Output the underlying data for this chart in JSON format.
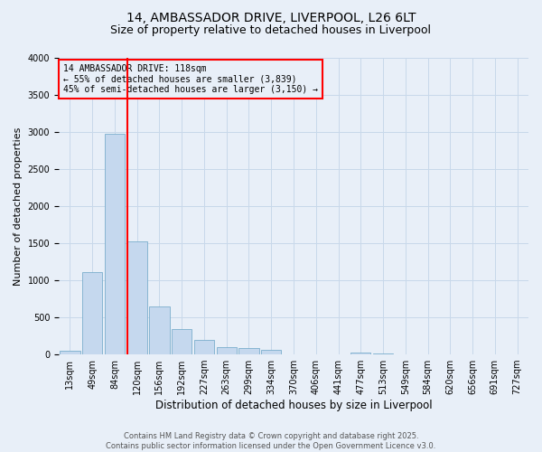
{
  "title_line1": "14, AMBASSADOR DRIVE, LIVERPOOL, L26 6LT",
  "title_line2": "Size of property relative to detached houses in Liverpool",
  "xlabel": "Distribution of detached houses by size in Liverpool",
  "ylabel": "Number of detached properties",
  "footer_line1": "Contains HM Land Registry data © Crown copyright and database right 2025.",
  "footer_line2": "Contains public sector information licensed under the Open Government Licence v3.0.",
  "annotation_line1": "14 AMBASSADOR DRIVE: 118sqm",
  "annotation_line2": "← 55% of detached houses are smaller (3,839)",
  "annotation_line3": "45% of semi-detached houses are larger (3,150) →",
  "bar_categories": [
    "13sqm",
    "49sqm",
    "84sqm",
    "120sqm",
    "156sqm",
    "192sqm",
    "227sqm",
    "263sqm",
    "299sqm",
    "334sqm",
    "370sqm",
    "406sqm",
    "441sqm",
    "477sqm",
    "513sqm",
    "549sqm",
    "584sqm",
    "620sqm",
    "656sqm",
    "691sqm",
    "727sqm"
  ],
  "bar_values": [
    55,
    1110,
    2970,
    1530,
    650,
    340,
    200,
    95,
    90,
    65,
    0,
    0,
    0,
    30,
    10,
    0,
    0,
    0,
    0,
    0,
    0
  ],
  "bar_color": "#c5d8ee",
  "bar_edge_color": "#7aaecc",
  "vline_color": "red",
  "vline_x_pos": 2.575,
  "ylim": [
    0,
    4000
  ],
  "yticks": [
    0,
    500,
    1000,
    1500,
    2000,
    2500,
    3000,
    3500,
    4000
  ],
  "grid_color": "#c8d8ea",
  "annotation_box_color": "red",
  "bg_color": "#e8eff8",
  "title_fontsize": 10,
  "subtitle_fontsize": 9,
  "ylabel_fontsize": 8,
  "xlabel_fontsize": 8.5,
  "tick_fontsize": 7,
  "annotation_fontsize": 7,
  "footer_fontsize": 6
}
